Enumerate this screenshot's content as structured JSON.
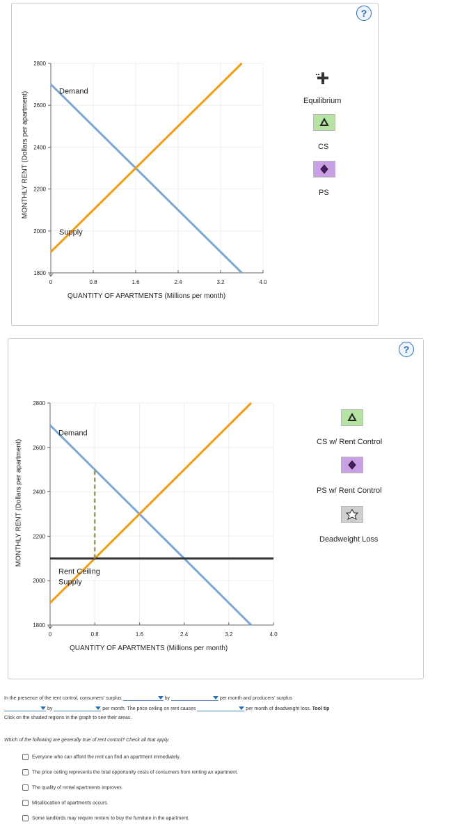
{
  "help_icon": "?",
  "graph1": {
    "y_axis_label": "MONTHLY RENT (Dollars per apartment)",
    "x_axis_label": "QUANTITY OF APARTMENTS (Millions per month)",
    "y_ticks": [
      "2800",
      "2600",
      "2400",
      "2200",
      "2000",
      "1800"
    ],
    "x_ticks": [
      "0",
      "0.8",
      "1.6",
      "2.4",
      "3.2",
      "4.0"
    ],
    "demand_label": "Demand",
    "supply_label": "Supply",
    "legend": {
      "equilibrium": "Equilibrium",
      "cs": "CS",
      "ps": "PS"
    }
  },
  "graph2": {
    "y_axis_label": "MONTHLY RENT (Dollars per apartment)",
    "x_axis_label": "QUANTITY OF APARTMENTS (Millions per month)",
    "y_ticks": [
      "2800",
      "2600",
      "2400",
      "2200",
      "2000",
      "1800"
    ],
    "x_ticks": [
      "0",
      "0.8",
      "1.6",
      "2.4",
      "3.2",
      "4.0"
    ],
    "demand_label": "Demand",
    "supply_label": "Supply",
    "ceiling_label": "Rent Ceiling",
    "legend": {
      "cs": "CS w/ Rent Control",
      "ps": "PS w/ Rent Control",
      "dwl": "Deadweight Loss"
    }
  },
  "chart_data": [
    {
      "type": "line",
      "xlim": [
        0,
        4.0
      ],
      "ylim": [
        1800,
        2800
      ],
      "xlabel": "QUANTITY OF APARTMENTS (Millions per month)",
      "ylabel": "MONTHLY RENT (Dollars per apartment)",
      "series": [
        {
          "name": "Demand",
          "x": [
            0,
            3.6
          ],
          "y": [
            2700,
            1800
          ],
          "color": "#7ba7d3"
        },
        {
          "name": "Supply",
          "x": [
            0,
            3.6
          ],
          "y": [
            1900,
            2800
          ],
          "color": "#f39c12"
        }
      ]
    },
    {
      "type": "line",
      "xlim": [
        0,
        4.0
      ],
      "ylim": [
        1800,
        2800
      ],
      "xlabel": "QUANTITY OF APARTMENTS (Millions per month)",
      "ylabel": "MONTHLY RENT (Dollars per apartment)",
      "series": [
        {
          "name": "Demand",
          "x": [
            0,
            3.6
          ],
          "y": [
            2700,
            1800
          ],
          "color": "#7ba7d3"
        },
        {
          "name": "Supply",
          "x": [
            0,
            3.6
          ],
          "y": [
            1900,
            2800
          ],
          "color": "#f39c12"
        },
        {
          "name": "Rent Ceiling",
          "x": [
            0,
            4.0
          ],
          "y": [
            2100,
            2100
          ],
          "color": "#333333"
        },
        {
          "name": "",
          "x": [
            0.8,
            0.8
          ],
          "y": [
            2100,
            2500
          ],
          "color": "#a09a55",
          "dashed": true
        }
      ]
    }
  ],
  "question1": {
    "part1": "In the presence of the rent control, consumers' surplus",
    "part2": "by",
    "part3": "per month and producers' surplus",
    "part4": "by",
    "part5": "per month. The price ceiling on rent causes",
    "part6": "per month of deadweight loss.",
    "tool_tip": "Tool tip",
    "part7": "Click on the shaded regions in the graph to see their areas."
  },
  "question2": {
    "prompt": "Which of the following are generally true of rent control? Check all that apply.",
    "options": [
      "Everyone who can afford the rent can find an apartment immediately.",
      "The price ceiling represents the total opportunity costs of consumers from renting an apartment.",
      "The quality of rental apartments improves.",
      "Misallocation of apartments occurs.",
      "Some landlords may require renters to buy the furniture in the apartment."
    ]
  }
}
